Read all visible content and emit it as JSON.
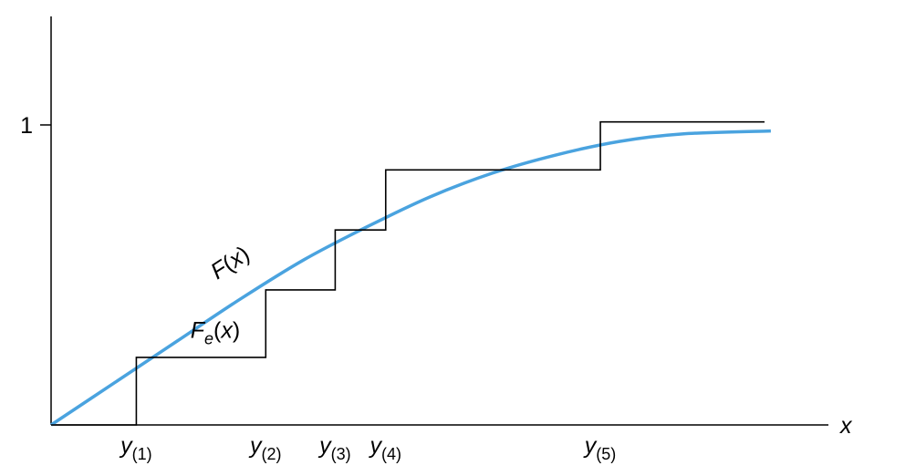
{
  "chart_data": {
    "type": "line",
    "title": "",
    "xlabel": "x",
    "ylabel": "",
    "ylim": [
      0,
      1.35
    ],
    "y_ticks": [
      {
        "value": 1,
        "label": "1"
      }
    ],
    "grid": false,
    "legend": "none",
    "order_statistics": [
      {
        "x": 0.135,
        "base": "y",
        "sub": "(1)"
      },
      {
        "x": 0.34,
        "base": "y",
        "sub": "(2)"
      },
      {
        "x": 0.45,
        "base": "y",
        "sub": "(3)"
      },
      {
        "x": 0.53,
        "base": "y",
        "sub": "(4)"
      },
      {
        "x": 0.87,
        "base": "y",
        "sub": "(5)"
      }
    ],
    "series": [
      {
        "name": "F(x)",
        "kind": "smooth_cdf",
        "color": "#4aa3df",
        "x": [
          0,
          0.1,
          0.2,
          0.3,
          0.4,
          0.5,
          0.6,
          0.7,
          0.8,
          0.9,
          1.0,
          1.14
        ],
        "y": [
          0,
          0.14,
          0.28,
          0.42,
          0.55,
          0.66,
          0.76,
          0.84,
          0.9,
          0.945,
          0.97,
          0.98
        ]
      },
      {
        "name": "F_e(x)",
        "kind": "step",
        "color": "#000000",
        "x": [
          0,
          0.135,
          0.34,
          0.45,
          0.53,
          0.87,
          1.13
        ],
        "y": [
          0,
          0.225,
          0.45,
          0.65,
          0.85,
          1.01,
          1.01
        ]
      }
    ],
    "annotations": [
      {
        "series": "F(x)",
        "base": "F",
        "sub": "",
        "arg": "(x)",
        "x": 0.29,
        "y": 0.52,
        "rotate": -33
      },
      {
        "series": "F_e(x)",
        "base": "F",
        "sub": "e",
        "arg": "(x)",
        "x": 0.26,
        "y": 0.29,
        "rotate": 0
      }
    ]
  }
}
